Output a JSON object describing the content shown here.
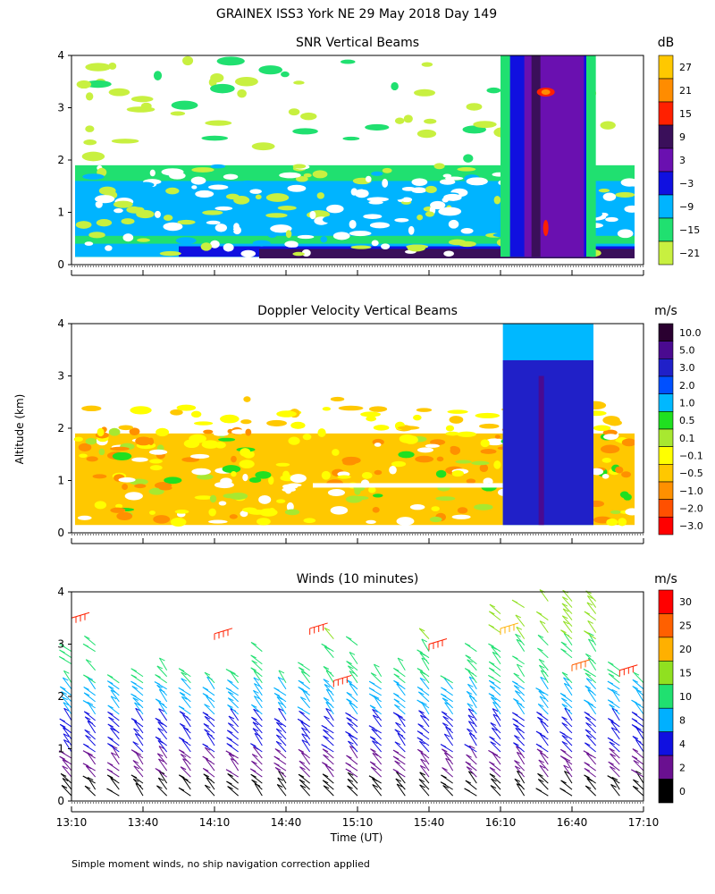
{
  "title": "GRAINEX ISS3 York NE  29 May 2018 Day 149",
  "ylabel": "Altitude (km)",
  "xlabel": "Time (UT)",
  "footnote": "Simple moment winds, no ship navigation correction applied",
  "x_ticks": [
    "13:10",
    "13:40",
    "14:10",
    "14:40",
    "15:10",
    "15:40",
    "16:10",
    "16:40",
    "17:10"
  ],
  "y_ticks": [
    "0",
    "1",
    "2",
    "3",
    "4"
  ],
  "chart_data": [
    {
      "type": "heatmap",
      "title": "SNR Vertical Beams",
      "units": "dB",
      "x_range": [
        "13:10",
        "17:10"
      ],
      "y_range_km": [
        0,
        4
      ],
      "colorbar_labels": [
        "27",
        "21",
        "15",
        "9",
        "3",
        "−3",
        "−9",
        "−15",
        "−21"
      ],
      "colorbar_colors": [
        "#ffc800",
        "#ff8c00",
        "#ff2000",
        "#3a0f5a",
        "#6a10b0",
        "#1010e0",
        "#00b4ff",
        "#20e070",
        "#c8f040"
      ],
      "notes": "Data from ~0.15 to ~2 km most of the period, scattered echoes to 4 km; strong SNR column 16:20–16:45 up to 4 km."
    },
    {
      "type": "heatmap",
      "title": "Doppler Velocity Vertical Beams",
      "units": "m/s",
      "x_range": [
        "13:10",
        "17:10"
      ],
      "y_range_km": [
        0,
        4
      ],
      "colorbar_labels": [
        "10.0",
        "5.0",
        "3.0",
        "2.0",
        "1.0",
        "0.5",
        "0.1",
        "−0.1",
        "−0.5",
        "−1.0",
        "−2.0",
        "−3.0"
      ],
      "colorbar_colors": [
        "#2a0030",
        "#4a0a90",
        "#2020c8",
        "#0050ff",
        "#00b8ff",
        "#20e020",
        "#a8e830",
        "#ffff00",
        "#ffc800",
        "#ff9000",
        "#ff5000",
        "#ff0000"
      ],
      "notes": "Mostly -0.1 to -1.0 m/s below ~2 km; 2–3 m/s column 16:20–16:45."
    },
    {
      "type": "wind_barbs",
      "title": "Winds (10 minutes)",
      "units": "m/s",
      "x_range": [
        "13:10",
        "17:10"
      ],
      "y_range_km": [
        0,
        4
      ],
      "colorbar_labels": [
        "30",
        "25",
        "20",
        "15",
        "10",
        "8",
        "4",
        "2",
        "0"
      ],
      "colorbar_colors": [
        "#ff0000",
        "#ff6000",
        "#ffb000",
        "#90e020",
        "#20e070",
        "#00b0ff",
        "#1010e0",
        "#6a1090",
        "#000000"
      ],
      "notes": "Barbs every 10 minutes, speeds increasing with altitude from ~2-4 m/s near surface to 10-20 m/s at 2-4 km."
    }
  ]
}
